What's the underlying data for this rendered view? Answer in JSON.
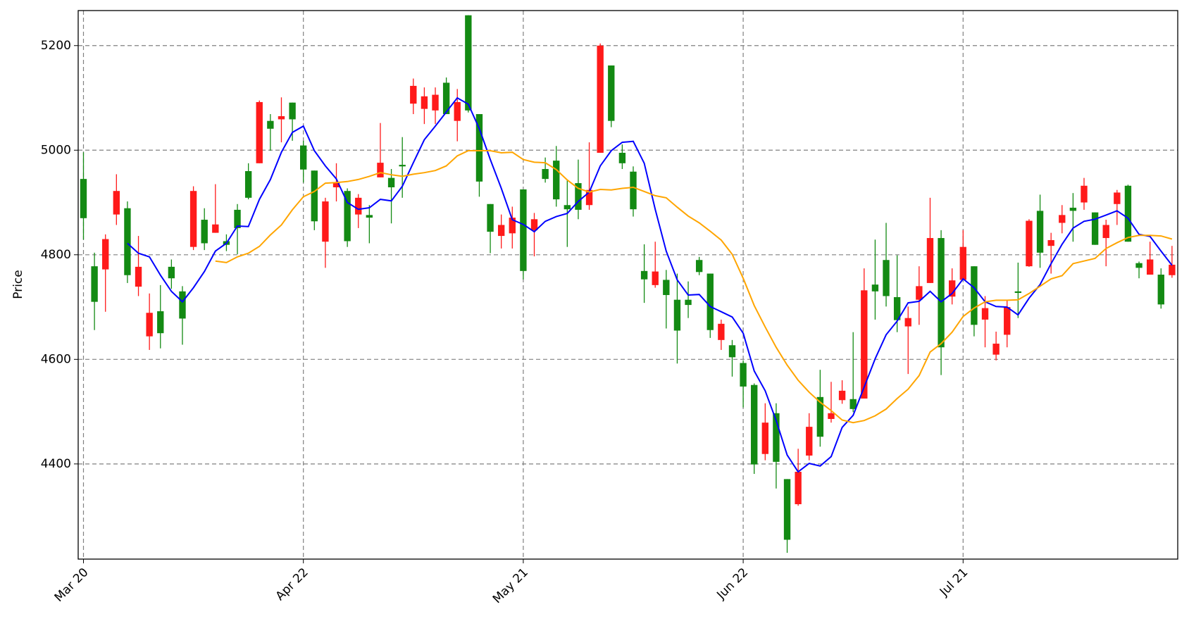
{
  "chart_data": {
    "type": "candlestick",
    "ylabel": "Price",
    "categories": [
      "Mar 20",
      null,
      null,
      null,
      null,
      null,
      null,
      null,
      null,
      null,
      null,
      null,
      null,
      null,
      null,
      null,
      null,
      null,
      null,
      null,
      "Apr 22",
      null,
      null,
      null,
      null,
      null,
      null,
      null,
      null,
      null,
      null,
      null,
      null,
      null,
      null,
      null,
      null,
      null,
      null,
      null,
      "May 21",
      null,
      null,
      null,
      null,
      null,
      null,
      null,
      null,
      null,
      null,
      null,
      null,
      null,
      null,
      null,
      null,
      null,
      null,
      null,
      "Jun 22",
      null,
      null,
      null,
      null,
      null,
      null,
      null,
      null,
      null,
      null,
      null,
      null,
      null,
      null,
      null,
      null,
      null,
      null,
      null,
      "Jul 21",
      null,
      null,
      null,
      null,
      null,
      null,
      null,
      null,
      null,
      null,
      null,
      null,
      null,
      null,
      null,
      null,
      null,
      null,
      null
    ],
    "open": [
      4870,
      4710,
      4830,
      4922,
      4761,
      4777,
      4689,
      4650,
      4755,
      4678,
      4922,
      4822,
      4858,
      4819,
      4851,
      4909,
      5092,
      5041,
      5065,
      5059,
      4963,
      4864,
      4902,
      4938,
      4826,
      4909,
      4871,
      4976,
      4929,
      4969,
      5123,
      5103,
      5106,
      5069,
      5092,
      5076,
      4940,
      4844,
      4857,
      4871,
      4769,
      4868,
      4945,
      4906,
      4887,
      4886,
      4924,
      5200,
      5056,
      4975,
      4887,
      4753,
      4768,
      4723,
      4655,
      4704,
      4767,
      4656,
      4668,
      4604,
      4548,
      4399,
      4479,
      4404,
      4255,
      4385,
      4471,
      4452,
      4497,
      4540,
      4505,
      4732,
      4730,
      4721,
      4675,
      4679,
      4740,
      4832,
      4623,
      4751,
      4815,
      4666,
      4698,
      4630,
      4700,
      4727,
      4865,
      4804,
      4828,
      4876,
      4884,
      4932,
      4819,
      4857,
      4919,
      4825,
      4775,
      4791,
      4705,
      4781
    ],
    "high": [
      4996,
      4804,
      4839,
      4954,
      4902,
      4836,
      4726,
      4742,
      4791,
      4740,
      4931,
      4889,
      4935,
      4839,
      4897,
      4975,
      5095,
      5069,
      5101,
      5091,
      5018,
      4961,
      4909,
      4975,
      4927,
      4916,
      4895,
      5052,
      4964,
      5025,
      5137,
      5120,
      5120,
      5139,
      5117,
      5258,
      5069,
      4897,
      4877,
      4892,
      4925,
      4880,
      4986,
      5008,
      4943,
      4982,
      5015,
      5204,
      5162,
      5011,
      4969,
      4820,
      4825,
      4771,
      4764,
      4749,
      4796,
      4764,
      4676,
      4637,
      4598,
      4554,
      4516,
      4516,
      4371,
      4429,
      4497,
      4580,
      4557,
      4560,
      4652,
      4774,
      4829,
      4861,
      4799,
      4701,
      4778,
      4909,
      4847,
      4774,
      4847,
      4778,
      4721,
      4653,
      4714,
      4785,
      4868,
      4915,
      4842,
      4895,
      4918,
      4947,
      4881,
      4867,
      4924,
      4934,
      4787,
      4825,
      4774,
      4817
    ],
    "low": [
      4829,
      4656,
      4691,
      4857,
      4746,
      4721,
      4618,
      4621,
      4735,
      4628,
      4809,
      4809,
      4842,
      4807,
      4801,
      4906,
      4975,
      4999,
      5015,
      5018,
      4938,
      4847,
      4775,
      4902,
      4815,
      4851,
      4822,
      4948,
      4860,
      4909,
      5069,
      5050,
      5050,
      5069,
      5017,
      5072,
      4911,
      4803,
      4812,
      4812,
      4753,
      4797,
      4938,
      4892,
      4815,
      4868,
      4886,
      4995,
      5044,
      4964,
      4873,
      4708,
      4737,
      4659,
      4592,
      4679,
      4761,
      4641,
      4618,
      4567,
      4508,
      4381,
      4407,
      4353,
      4230,
      4320,
      4407,
      4433,
      4479,
      4515,
      4499,
      4525,
      4676,
      4701,
      4652,
      4572,
      4666,
      4746,
      4570,
      4705,
      4752,
      4644,
      4623,
      4598,
      4623,
      4679,
      4777,
      4775,
      4764,
      4841,
      4825,
      4886,
      4819,
      4778,
      4857,
      4825,
      4755,
      4762,
      4697,
      4756
    ],
    "close": [
      4945,
      4778,
      4772,
      4877,
      4889,
      4739,
      4644,
      4692,
      4777,
      4730,
      4815,
      4867,
      4842,
      4826,
      4886,
      4960,
      4975,
      5056,
      5059,
      5091,
      5009,
      4961,
      4825,
      4929,
      4922,
      4877,
      4876,
      4948,
      4947,
      4972,
      5089,
      5079,
      5076,
      5129,
      5056,
      5258,
      5069,
      4897,
      4836,
      4841,
      4925,
      4847,
      4964,
      4980,
      4895,
      4937,
      4895,
      4995,
      5162,
      4995,
      4959,
      4769,
      4742,
      4752,
      4714,
      4714,
      4790,
      4764,
      4637,
      4627,
      4593,
      4551,
      4419,
      4497,
      4371,
      4323,
      4416,
      4528,
      4486,
      4522,
      4524,
      4525,
      4743,
      4790,
      4719,
      4663,
      4714,
      4746,
      4832,
      4720,
      4752,
      4778,
      4676,
      4609,
      4647,
      4730,
      4778,
      4884,
      4817,
      4861,
      4890,
      4900,
      4881,
      4832,
      4897,
      4932,
      4784,
      4762,
      4762,
      4761
    ],
    "up_color": "#138a13",
    "down_color": "#ff1a1a",
    "series": [
      {
        "color": "#0000ff",
        "values": [
          null,
          null,
          null,
          null,
          4822,
          4803,
          4796,
          4761,
          4730,
          4710,
          4737,
          4768,
          4807,
          4822,
          4855,
          4854,
          4906,
          4944,
          4996,
          5034,
          5046,
          4999,
          4970,
          4945,
          4900,
          4887,
          4890,
          4906,
          4903,
          4931,
          4976,
          5020,
          5046,
          5073,
          5100,
          5088,
          5041,
          4982,
          4927,
          4867,
          4858,
          4844,
          4864,
          4873,
          4879,
          4902,
          4920,
          4970,
          4999,
          5015,
          5017,
          4975,
          4887,
          4807,
          4752,
          4723,
          4724,
          4701,
          4691,
          4681,
          4650,
          4578,
          4540,
          4483,
          4417,
          4385,
          4401,
          4396,
          4414,
          4470,
          4493,
          4547,
          4601,
          4647,
          4673,
          4708,
          4711,
          4730,
          4710,
          4726,
          4754,
          4737,
          4710,
          4701,
          4700,
          4685,
          4717,
          4743,
          4783,
          4820,
          4851,
          4864,
          4868,
          4876,
          4884,
          4870,
          4839,
          4835,
          4807,
          4780
        ]
      },
      {
        "color": "#ffa500",
        "values": [
          null,
          null,
          null,
          null,
          null,
          null,
          null,
          null,
          null,
          null,
          null,
          null,
          4788,
          4785,
          4796,
          4803,
          4816,
          4838,
          4857,
          4886,
          4911,
          4921,
          4937,
          4938,
          4940,
          4944,
          4950,
          4957,
          4953,
          4950,
          4954,
          4957,
          4961,
          4970,
          4989,
          4999,
          4999,
          4999,
          4995,
          4996,
          4982,
          4977,
          4976,
          4963,
          4943,
          4927,
          4920,
          4925,
          4924,
          4927,
          4929,
          4921,
          4913,
          4909,
          4891,
          4874,
          4861,
          4845,
          4828,
          4801,
          4755,
          4703,
          4662,
          4623,
          4589,
          4560,
          4537,
          4518,
          4502,
          4484,
          4479,
          4483,
          4492,
          4505,
          4525,
          4543,
          4569,
          4614,
          4630,
          4652,
          4682,
          4698,
          4710,
          4713,
          4713,
          4714,
          4726,
          4740,
          4754,
          4760,
          4783,
          4788,
          4793,
          4812,
          4823,
          4833,
          4837,
          4837,
          4836,
          4830
        ]
      }
    ],
    "ylim": [
      4218,
      5267
    ],
    "yticks": [
      4400,
      4600,
      4800,
      5000,
      5200
    ],
    "grid": true
  }
}
